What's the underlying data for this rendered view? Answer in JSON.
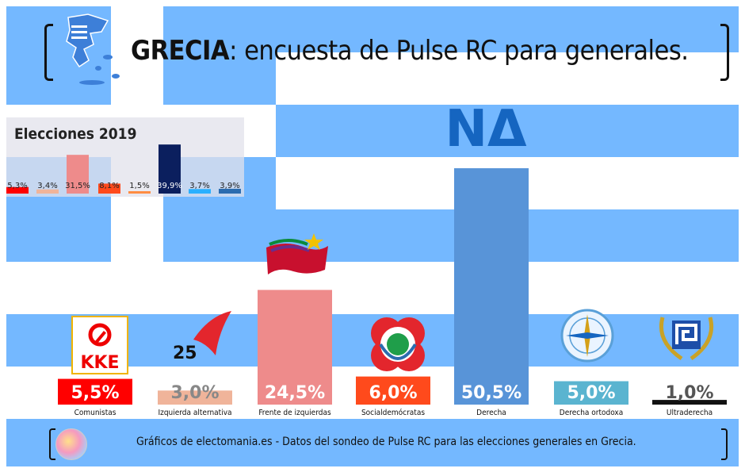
{
  "header": {
    "title_bold": "GRECIA",
    "title_rest": ": encuesta de Pulse RC para generales."
  },
  "footer": {
    "text": "Gráficos de electomania.es - Datos del sondeo de Pulse RC para las elecciones generales en Grecia."
  },
  "logos": {
    "nd": "ΝΔ",
    "kke": "KKE",
    "mera25": "25"
  },
  "chart_data": [
    {
      "type": "bar",
      "title": "",
      "categories": [
        "Comunistas",
        "Izquierda alternativa",
        "Frente de izquierdas",
        "Socialdemócratas",
        "Derecha",
        "Derecha ortodoxa",
        "Ultraderecha"
      ],
      "values": [
        5.5,
        3.0,
        24.5,
        6.0,
        50.5,
        5.0,
        1.0
      ],
      "value_labels": [
        "5,5%",
        "3,0%",
        "24,5%",
        "6,0%",
        "50,5%",
        "5,0%",
        "1,0%"
      ],
      "colors": [
        "#ff0000",
        "#f0b49a",
        "#ee8b8b",
        "#ff4a1c",
        "#5894d8",
        "#5ab4d0",
        "#111111"
      ]
    },
    {
      "type": "bar",
      "title": "Elecciones 2019",
      "values": [
        5.3,
        3.4,
        31.5,
        8.1,
        1.5,
        39.9,
        3.7,
        3.9
      ],
      "value_labels": [
        "5,3%",
        "3,4%",
        "31,5%",
        "8,1%",
        "1,5%",
        "39,9%",
        "3,7%",
        "3,9%"
      ],
      "colors": [
        "#ff0000",
        "#f0b49a",
        "#ee8b8b",
        "#ff4a1c",
        "#ff8c42",
        "#0b1f5e",
        "#2ab0ff",
        "#2b6cb0"
      ]
    }
  ]
}
